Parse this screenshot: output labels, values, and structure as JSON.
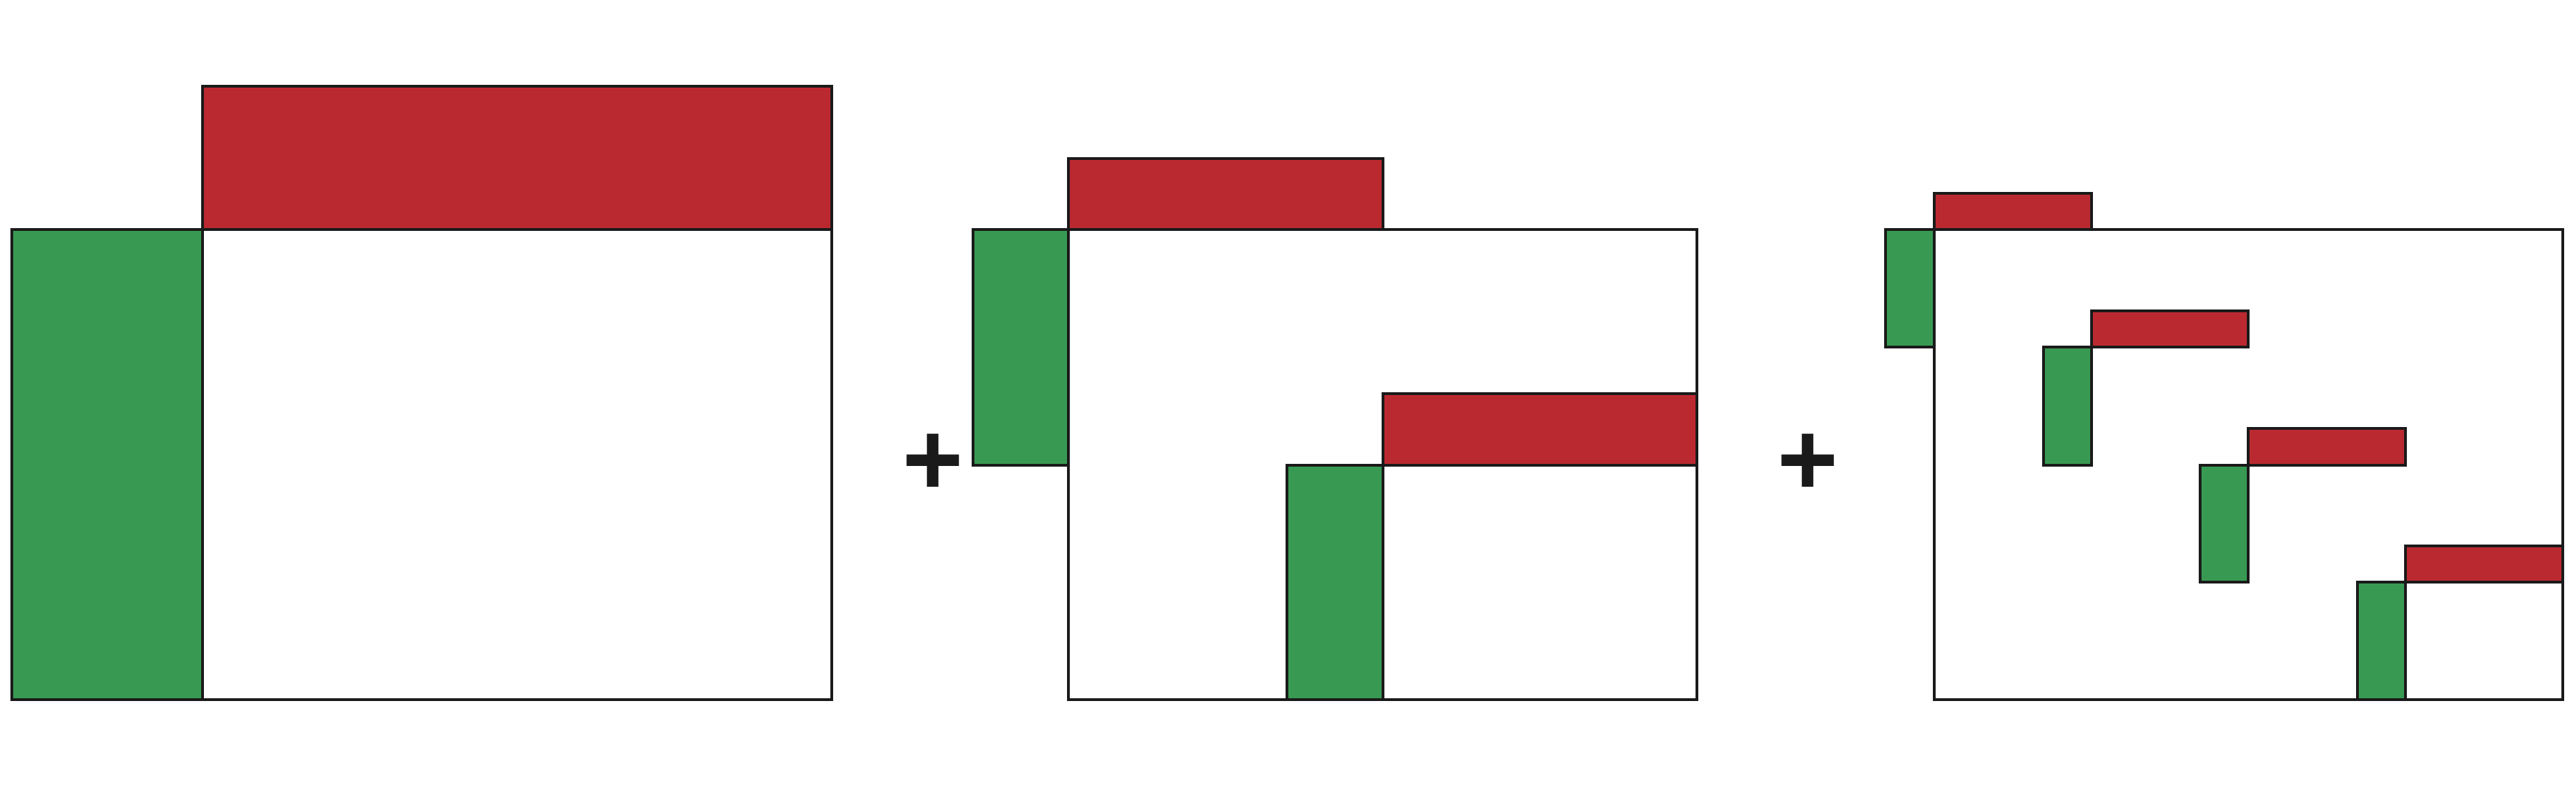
{
  "colors": {
    "red_block": "#BB2930",
    "green_block": "#389A52",
    "background": "#FFFFFF",
    "outline": "#1A1A1A",
    "plus_sign": "#1A1A1A"
  },
  "panels": [
    {
      "id": "panel-1",
      "block_pairs": 1
    },
    {
      "id": "panel-2",
      "block_pairs": 2
    },
    {
      "id": "panel-3",
      "block_pairs": 4
    }
  ],
  "operators": [
    "+",
    "+"
  ]
}
